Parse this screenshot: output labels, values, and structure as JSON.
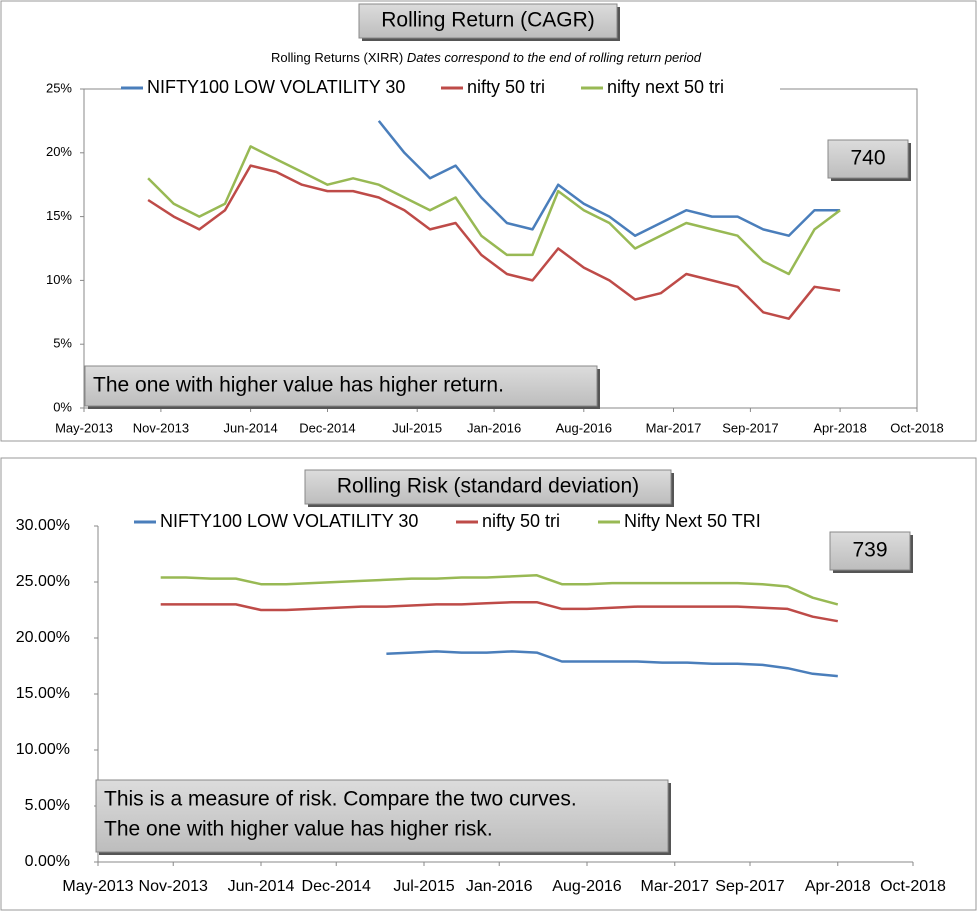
{
  "chart_data": [
    {
      "type": "line",
      "title": "Rolling Return (CAGR)",
      "subtitle": "Rolling Returns (XIRR)",
      "subtitle_note": "Dates correspond to the end of rolling return period",
      "x": [
        "Oct-2013",
        "Dec-2013",
        "Feb-2014",
        "Apr-2014",
        "Jun-2014",
        "Aug-2014",
        "Oct-2014",
        "Dec-2014",
        "Feb-2015",
        "Apr-2015",
        "Jun-2015",
        "Aug-2015",
        "Oct-2015",
        "Dec-2015",
        "Feb-2016",
        "Apr-2016",
        "Jun-2016",
        "Aug-2016",
        "Oct-2016",
        "Dec-2016",
        "Feb-2017",
        "Apr-2017",
        "Jun-2017",
        "Aug-2017",
        "Oct-2017",
        "Dec-2017",
        "Feb-2018",
        "Apr-2018"
      ],
      "series": [
        {
          "name": "NIFTY100 LOW VOLATILITY 30",
          "color": "#4a7ebb",
          "values": [
            null,
            null,
            null,
            null,
            null,
            null,
            null,
            null,
            null,
            22.5,
            20,
            18,
            19,
            16.5,
            14.5,
            14,
            17.5,
            16,
            15,
            13.5,
            14.5,
            15.5,
            15,
            15,
            14,
            13.5,
            15.5,
            15.5
          ]
        },
        {
          "name": "nifty 50 tri",
          "color": "#be4b48",
          "values": [
            16.3,
            15,
            14,
            15.5,
            19,
            18.5,
            17.5,
            17,
            17,
            16.5,
            15.5,
            14,
            14.5,
            12,
            10.5,
            10,
            12.5,
            11,
            10,
            8.5,
            9,
            10.5,
            10,
            9.5,
            7.5,
            7,
            9.5,
            9.2
          ]
        },
        {
          "name": "nifty next 50 tri",
          "color": "#98b954",
          "values": [
            18,
            16,
            15,
            16,
            20.5,
            19.5,
            18.5,
            17.5,
            18,
            17.5,
            16.5,
            15.5,
            16.5,
            13.5,
            12,
            12,
            17,
            15.5,
            14.5,
            12.5,
            13.5,
            14.5,
            14,
            13.5,
            11.5,
            10.5,
            14,
            15.5
          ]
        }
      ],
      "xlim": [
        "May-2013",
        "Oct-2018"
      ],
      "xticks": [
        "May-2013",
        "Nov-2013",
        "Jun-2014",
        "Dec-2014",
        "Jul-2015",
        "Jan-2016",
        "Aug-2016",
        "Mar-2017",
        "Sep-2017",
        "Apr-2018",
        "Oct-2018"
      ],
      "ylim": [
        0,
        25
      ],
      "yticks": [
        {
          "value": 0,
          "label": "0%"
        },
        {
          "value": 5,
          "label": "5%"
        },
        {
          "value": 10,
          "label": "10%"
        },
        {
          "value": 15,
          "label": "15%"
        },
        {
          "value": 20,
          "label": "20%"
        },
        {
          "value": 25,
          "label": "25%"
        }
      ],
      "legend": "top",
      "annotations": [
        "740",
        "The one with higher value has higher return."
      ]
    },
    {
      "type": "line",
      "title": "Rolling Risk (standard deviation)",
      "x": [
        "Oct-2013",
        "Dec-2013",
        "Feb-2014",
        "Apr-2014",
        "Jun-2014",
        "Aug-2014",
        "Oct-2014",
        "Dec-2014",
        "Feb-2015",
        "Apr-2015",
        "Jun-2015",
        "Aug-2015",
        "Oct-2015",
        "Dec-2015",
        "Feb-2016",
        "Apr-2016",
        "Jun-2016",
        "Aug-2016",
        "Oct-2016",
        "Dec-2016",
        "Feb-2017",
        "Apr-2017",
        "Jun-2017",
        "Aug-2017",
        "Oct-2017",
        "Dec-2017",
        "Feb-2018",
        "Apr-2018"
      ],
      "series": [
        {
          "name": "NIFTY100 LOW VOLATILITY 30",
          "color": "#4a7ebb",
          "values": [
            null,
            null,
            null,
            null,
            null,
            null,
            null,
            null,
            null,
            18.6,
            18.7,
            18.8,
            18.7,
            18.7,
            18.8,
            18.7,
            17.9,
            17.9,
            17.9,
            17.9,
            17.8,
            17.8,
            17.7,
            17.7,
            17.6,
            17.3,
            16.8,
            16.6
          ]
        },
        {
          "name": "nifty 50 tri",
          "color": "#be4b48",
          "values": [
            23,
            23,
            23,
            23,
            22.5,
            22.5,
            22.6,
            22.7,
            22.8,
            22.8,
            22.9,
            23,
            23,
            23.1,
            23.2,
            23.2,
            22.6,
            22.6,
            22.7,
            22.8,
            22.8,
            22.8,
            22.8,
            22.8,
            22.7,
            22.6,
            21.9,
            21.5
          ]
        },
        {
          "name": "Nifty Next 50 TRI",
          "color": "#98b954",
          "values": [
            25.4,
            25.4,
            25.3,
            25.3,
            24.8,
            24.8,
            24.9,
            25,
            25.1,
            25.2,
            25.3,
            25.3,
            25.4,
            25.4,
            25.5,
            25.6,
            24.8,
            24.8,
            24.9,
            24.9,
            24.9,
            24.9,
            24.9,
            24.9,
            24.8,
            24.6,
            23.6,
            23
          ]
        }
      ],
      "xlim": [
        "May-2013",
        "Oct-2018"
      ],
      "xticks": [
        "May-2013",
        "Nov-2013",
        "Jun-2014",
        "Dec-2014",
        "Jul-2015",
        "Jan-2016",
        "Aug-2016",
        "Mar-2017",
        "Sep-2017",
        "Apr-2018",
        "Oct-2018"
      ],
      "ylim": [
        0,
        30
      ],
      "yticks": [
        {
          "value": 0,
          "label": "0.00%"
        },
        {
          "value": 5,
          "label": "5.00%"
        },
        {
          "value": 10,
          "label": "10.00%"
        },
        {
          "value": 15,
          "label": "15.00%"
        },
        {
          "value": 20,
          "label": "20.00%"
        },
        {
          "value": 25,
          "label": "25.00%"
        },
        {
          "value": 30,
          "label": "30.00%"
        }
      ],
      "legend": "top",
      "annotations": [
        "739",
        "This is a measure of risk.  Compare the two curves.",
        "The one with higher value has higher risk."
      ]
    }
  ]
}
